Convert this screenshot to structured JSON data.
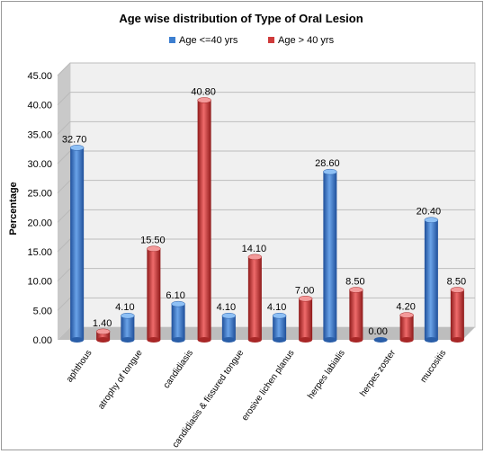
{
  "chart_data": {
    "type": "bar",
    "title": "Age wise distribution of Type of Oral Lesion",
    "xlabel": "",
    "ylabel": "Percentage",
    "ylim": [
      0,
      45
    ],
    "yticks": [
      "0.00",
      "5.00",
      "10.00",
      "15.00",
      "20.00",
      "25.00",
      "30.00",
      "35.00",
      "40.00",
      "45.00"
    ],
    "categories": [
      "aphthous",
      "atrophy of tongue",
      "candidiasis",
      "candidiasis & fissured tongue",
      "erosive lichen planus",
      "herpes labialis",
      "herpes zoster",
      "mucositis"
    ],
    "series": [
      {
        "name": "Age <=40 yrs",
        "color": "#3d7fd0",
        "values": [
          32.7,
          4.1,
          6.1,
          4.1,
          4.1,
          28.6,
          0.0,
          20.4
        ],
        "labels": [
          "32.70",
          "4.10",
          "6.10",
          "4.10",
          "4.10",
          "28.60",
          "0.00",
          "20.40"
        ]
      },
      {
        "name": "Age > 40 yrs",
        "color": "#cf3b3b",
        "values": [
          1.4,
          15.5,
          40.8,
          14.1,
          7.0,
          8.5,
          4.2,
          8.5
        ],
        "labels": [
          "1.40",
          "15.50",
          "40.80",
          "14.10",
          "7.00",
          "8.50",
          "4.20",
          "8.50"
        ]
      }
    ],
    "legend": "top",
    "grid": true
  }
}
